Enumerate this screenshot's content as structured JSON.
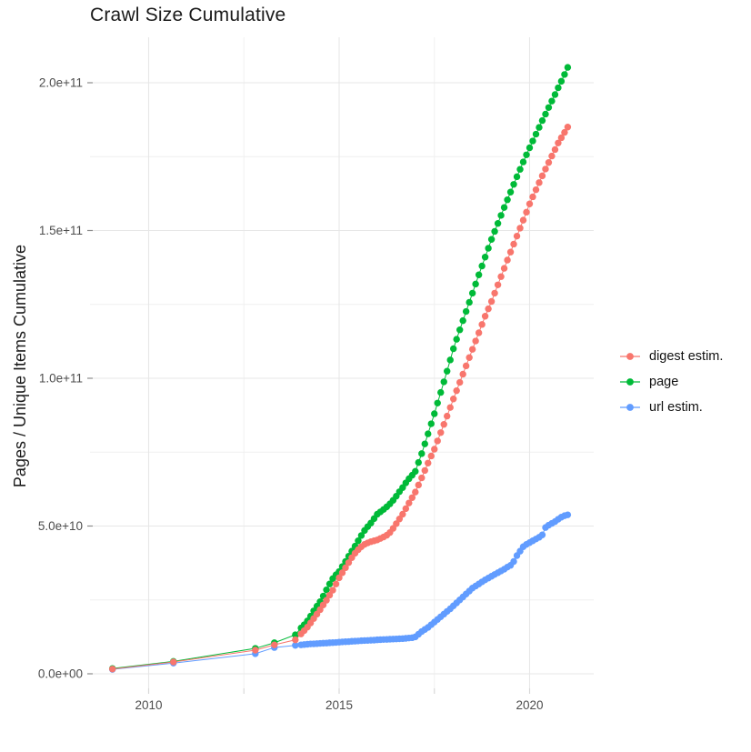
{
  "title": "Crawl Size Cumulative",
  "axes": {
    "x": {
      "major_ticks": [
        {
          "value": 2010,
          "label": "2010"
        },
        {
          "value": 2015,
          "label": "2015"
        },
        {
          "value": 2020,
          "label": "2020"
        }
      ],
      "minor_ticks": [
        2012.5,
        2017.5
      ],
      "range": [
        2008.4,
        2021.6
      ]
    },
    "y": {
      "label": "Pages / Unique Items Cumulative",
      "major_ticks": [
        {
          "value": 0,
          "label": "0.0e+00"
        },
        {
          "value": 50,
          "label": "5.0e+10"
        },
        {
          "value": 100,
          "label": "1.0e+11"
        },
        {
          "value": 150,
          "label": "1.5e+11"
        },
        {
          "value": 200,
          "label": "2.0e+11"
        }
      ],
      "minor_ticks": [
        25,
        75,
        125,
        175
      ],
      "unit_scale": 1000000000.0,
      "range_e9": [
        0,
        215
      ]
    }
  },
  "style": {
    "background": "#FFFFFF",
    "grid_major": "#E7E7E7",
    "grid_minor": "#EFEFEF",
    "tick_x": "#D8D8D8",
    "tick_y": "#8C8C8C",
    "tick_text": "#4D4D4D",
    "title_text": "#1A1A1A"
  },
  "chart_data": {
    "type": "line",
    "title": "Crawl Size Cumulative",
    "xlabel": "",
    "ylabel": "Pages / Unique Items Cumulative",
    "xlim": [
      2008.4,
      2021.6
    ],
    "ylim_e9": [
      0,
      215
    ],
    "y_unit": 1000000000.0,
    "grid": true,
    "legend_position": "right",
    "series": [
      {
        "name": "digest estim.",
        "color": "#F8766D",
        "points": [
          [
            2009.05,
            1.6
          ],
          [
            2010.65,
            4.0
          ],
          [
            2012.8,
            8.0
          ],
          [
            2013.3,
            9.8
          ],
          [
            2013.85,
            11.5
          ],
          [
            2014.0,
            13.5
          ],
          [
            2014.083,
            14.6
          ],
          [
            2014.167,
            15.8
          ],
          [
            2014.25,
            17.2
          ],
          [
            2014.333,
            18.7
          ],
          [
            2014.417,
            20.2
          ],
          [
            2014.5,
            21.7
          ],
          [
            2014.583,
            23.3
          ],
          [
            2014.667,
            24.9
          ],
          [
            2014.75,
            26.6
          ],
          [
            2014.833,
            28.3
          ],
          [
            2014.917,
            30.4
          ],
          [
            2015.0,
            32.5
          ],
          [
            2015.083,
            34.2
          ],
          [
            2015.167,
            35.9
          ],
          [
            2015.25,
            37.6
          ],
          [
            2015.333,
            39.3
          ],
          [
            2015.417,
            40.8
          ],
          [
            2015.5,
            42.0
          ],
          [
            2015.583,
            43.0
          ],
          [
            2015.667,
            43.8
          ],
          [
            2015.75,
            44.3
          ],
          [
            2015.833,
            44.7
          ],
          [
            2015.917,
            45.0
          ],
          [
            2016.0,
            45.3
          ],
          [
            2016.083,
            45.8
          ],
          [
            2016.167,
            46.3
          ],
          [
            2016.25,
            46.9
          ],
          [
            2016.333,
            47.8
          ],
          [
            2016.417,
            49.2
          ],
          [
            2016.5,
            50.8
          ],
          [
            2016.583,
            52.4
          ],
          [
            2016.667,
            54.0
          ],
          [
            2016.75,
            55.9
          ],
          [
            2016.833,
            57.8
          ],
          [
            2016.917,
            59.6
          ],
          [
            2017.0,
            61.5
          ],
          [
            2017.083,
            63.9
          ],
          [
            2017.167,
            66.3
          ],
          [
            2017.25,
            68.8
          ],
          [
            2017.333,
            71.3
          ],
          [
            2017.417,
            73.7
          ],
          [
            2017.5,
            76.0
          ],
          [
            2017.583,
            78.8
          ],
          [
            2017.667,
            81.6
          ],
          [
            2017.75,
            84.4
          ],
          [
            2017.833,
            87.2
          ],
          [
            2017.917,
            90.1
          ],
          [
            2018.0,
            93.0
          ],
          [
            2018.083,
            95.8
          ],
          [
            2018.167,
            98.6
          ],
          [
            2018.25,
            101.4
          ],
          [
            2018.333,
            104.2
          ],
          [
            2018.417,
            107.0
          ],
          [
            2018.5,
            109.8
          ],
          [
            2018.583,
            112.6
          ],
          [
            2018.667,
            115.4
          ],
          [
            2018.75,
            118.2
          ],
          [
            2018.833,
            121.0
          ],
          [
            2018.917,
            123.5
          ],
          [
            2019.0,
            126.0
          ],
          [
            2019.083,
            128.8
          ],
          [
            2019.167,
            131.6
          ],
          [
            2019.25,
            134.4
          ],
          [
            2019.333,
            137.2
          ],
          [
            2019.417,
            140.0
          ],
          [
            2019.5,
            142.7
          ],
          [
            2019.583,
            145.4
          ],
          [
            2019.667,
            148.1
          ],
          [
            2019.75,
            150.8
          ],
          [
            2019.833,
            153.5
          ],
          [
            2019.917,
            156.2
          ],
          [
            2020.0,
            159.0
          ],
          [
            2020.083,
            161.4
          ],
          [
            2020.167,
            163.8
          ],
          [
            2020.25,
            166.2
          ],
          [
            2020.333,
            168.5
          ],
          [
            2020.417,
            170.8
          ],
          [
            2020.5,
            173.0
          ],
          [
            2020.583,
            175.2
          ],
          [
            2020.667,
            177.4
          ],
          [
            2020.75,
            179.6
          ],
          [
            2020.833,
            181.4
          ],
          [
            2020.917,
            183.2
          ],
          [
            2021.0,
            185.0
          ]
        ]
      },
      {
        "name": "page",
        "color": "#00BA38",
        "points": [
          [
            2009.05,
            1.8
          ],
          [
            2010.65,
            4.2
          ],
          [
            2012.8,
            8.6
          ],
          [
            2013.3,
            10.5
          ],
          [
            2013.85,
            13.2
          ],
          [
            2014.0,
            15.5
          ],
          [
            2014.083,
            16.6
          ],
          [
            2014.167,
            17.9
          ],
          [
            2014.25,
            19.5
          ],
          [
            2014.333,
            21.3
          ],
          [
            2014.417,
            22.9
          ],
          [
            2014.5,
            24.4
          ],
          [
            2014.583,
            26.3
          ],
          [
            2014.667,
            28.4
          ],
          [
            2014.75,
            30.4
          ],
          [
            2014.833,
            32.2
          ],
          [
            2014.917,
            33.5
          ],
          [
            2015.0,
            34.6
          ],
          [
            2015.083,
            36.3
          ],
          [
            2015.167,
            38.0
          ],
          [
            2015.25,
            39.8
          ],
          [
            2015.333,
            41.5
          ],
          [
            2015.417,
            43.2
          ],
          [
            2015.5,
            45.0
          ],
          [
            2015.583,
            46.8
          ],
          [
            2015.667,
            48.5
          ],
          [
            2015.75,
            49.8
          ],
          [
            2015.833,
            51.0
          ],
          [
            2015.917,
            52.5
          ],
          [
            2016.0,
            54.0
          ],
          [
            2016.083,
            54.8
          ],
          [
            2016.167,
            55.6
          ],
          [
            2016.25,
            56.5
          ],
          [
            2016.333,
            57.5
          ],
          [
            2016.417,
            58.7
          ],
          [
            2016.5,
            60.1
          ],
          [
            2016.583,
            61.6
          ],
          [
            2016.667,
            63.0
          ],
          [
            2016.75,
            64.6
          ],
          [
            2016.833,
            66.0
          ],
          [
            2016.917,
            67.2
          ],
          [
            2017.0,
            68.5
          ],
          [
            2017.083,
            71.5
          ],
          [
            2017.167,
            74.5
          ],
          [
            2017.25,
            77.8
          ],
          [
            2017.333,
            81.2
          ],
          [
            2017.417,
            84.6
          ],
          [
            2017.5,
            88.0
          ],
          [
            2017.583,
            91.6
          ],
          [
            2017.667,
            95.2
          ],
          [
            2017.75,
            98.8
          ],
          [
            2017.833,
            102.4
          ],
          [
            2017.917,
            106.2
          ],
          [
            2018.0,
            110.0
          ],
          [
            2018.083,
            113.2
          ],
          [
            2018.167,
            116.4
          ],
          [
            2018.25,
            119.5
          ],
          [
            2018.333,
            122.6
          ],
          [
            2018.417,
            125.7
          ],
          [
            2018.5,
            128.8
          ],
          [
            2018.583,
            131.9
          ],
          [
            2018.667,
            135.0
          ],
          [
            2018.75,
            138.0
          ],
          [
            2018.833,
            141.0
          ],
          [
            2018.917,
            144.0
          ],
          [
            2019.0,
            147.0
          ],
          [
            2019.083,
            149.7
          ],
          [
            2019.167,
            152.4
          ],
          [
            2019.25,
            155.1
          ],
          [
            2019.333,
            157.8
          ],
          [
            2019.417,
            160.4
          ],
          [
            2019.5,
            163.0
          ],
          [
            2019.583,
            165.6
          ],
          [
            2019.667,
            168.2
          ],
          [
            2019.75,
            170.7
          ],
          [
            2019.833,
            173.2
          ],
          [
            2019.917,
            175.6
          ],
          [
            2020.0,
            178.0
          ],
          [
            2020.083,
            180.3
          ],
          [
            2020.167,
            182.6
          ],
          [
            2020.25,
            184.9
          ],
          [
            2020.333,
            187.2
          ],
          [
            2020.417,
            189.4
          ],
          [
            2020.5,
            191.6
          ],
          [
            2020.583,
            193.8
          ],
          [
            2020.667,
            196.0
          ],
          [
            2020.75,
            198.3
          ],
          [
            2020.833,
            200.5
          ],
          [
            2020.917,
            202.8
          ],
          [
            2021.0,
            205.2
          ]
        ]
      },
      {
        "name": "url estim.",
        "color": "#619CFF",
        "points": [
          [
            2009.05,
            1.5
          ],
          [
            2010.65,
            3.6
          ],
          [
            2012.8,
            6.8
          ],
          [
            2013.3,
            8.9
          ],
          [
            2013.85,
            9.6
          ],
          [
            2014.0,
            9.8
          ],
          [
            2014.083,
            9.9
          ],
          [
            2014.167,
            10.0
          ],
          [
            2014.25,
            10.1
          ],
          [
            2014.333,
            10.15
          ],
          [
            2014.417,
            10.2
          ],
          [
            2014.5,
            10.3
          ],
          [
            2014.583,
            10.35
          ],
          [
            2014.667,
            10.4
          ],
          [
            2014.75,
            10.5
          ],
          [
            2014.833,
            10.55
          ],
          [
            2014.917,
            10.6
          ],
          [
            2015.0,
            10.7
          ],
          [
            2015.083,
            10.8
          ],
          [
            2015.167,
            10.85
          ],
          [
            2015.25,
            10.9
          ],
          [
            2015.333,
            11.0
          ],
          [
            2015.417,
            11.05
          ],
          [
            2015.5,
            11.1
          ],
          [
            2015.583,
            11.2
          ],
          [
            2015.667,
            11.25
          ],
          [
            2015.75,
            11.3
          ],
          [
            2015.833,
            11.35
          ],
          [
            2015.917,
            11.4
          ],
          [
            2016.0,
            11.5
          ],
          [
            2016.083,
            11.55
          ],
          [
            2016.167,
            11.6
          ],
          [
            2016.25,
            11.65
          ],
          [
            2016.333,
            11.7
          ],
          [
            2016.417,
            11.75
          ],
          [
            2016.5,
            11.8
          ],
          [
            2016.583,
            11.85
          ],
          [
            2016.667,
            11.9
          ],
          [
            2016.75,
            12.0
          ],
          [
            2016.833,
            12.1
          ],
          [
            2016.917,
            12.2
          ],
          [
            2017.0,
            12.5
          ],
          [
            2017.083,
            13.4
          ],
          [
            2017.167,
            14.3
          ],
          [
            2017.25,
            15.0
          ],
          [
            2017.333,
            15.7
          ],
          [
            2017.417,
            16.6
          ],
          [
            2017.5,
            17.5
          ],
          [
            2017.583,
            18.4
          ],
          [
            2017.667,
            19.3
          ],
          [
            2017.75,
            20.2
          ],
          [
            2017.833,
            21.1
          ],
          [
            2017.917,
            22.0
          ],
          [
            2018.0,
            23.0
          ],
          [
            2018.083,
            24.0
          ],
          [
            2018.167,
            25.0
          ],
          [
            2018.25,
            26.0
          ],
          [
            2018.333,
            27.0
          ],
          [
            2018.417,
            28.0
          ],
          [
            2018.5,
            29.0
          ],
          [
            2018.583,
            29.7
          ],
          [
            2018.667,
            30.4
          ],
          [
            2018.75,
            31.1
          ],
          [
            2018.833,
            31.8
          ],
          [
            2018.917,
            32.4
          ],
          [
            2019.0,
            33.0
          ],
          [
            2019.083,
            33.6
          ],
          [
            2019.167,
            34.2
          ],
          [
            2019.25,
            34.8
          ],
          [
            2019.333,
            35.4
          ],
          [
            2019.417,
            36.1
          ],
          [
            2019.5,
            36.7
          ],
          [
            2019.583,
            38.0
          ],
          [
            2019.667,
            40.0
          ],
          [
            2019.75,
            41.5
          ],
          [
            2019.833,
            43.0
          ],
          [
            2019.917,
            43.8
          ],
          [
            2020.0,
            44.4
          ],
          [
            2020.083,
            45.0
          ],
          [
            2020.167,
            45.6
          ],
          [
            2020.25,
            46.2
          ],
          [
            2020.333,
            47.0
          ],
          [
            2020.417,
            49.5
          ],
          [
            2020.5,
            50.3
          ],
          [
            2020.583,
            50.9
          ],
          [
            2020.667,
            51.5
          ],
          [
            2020.75,
            52.3
          ],
          [
            2020.833,
            53.0
          ],
          [
            2020.917,
            53.5
          ],
          [
            2021.0,
            53.8
          ]
        ]
      }
    ]
  }
}
